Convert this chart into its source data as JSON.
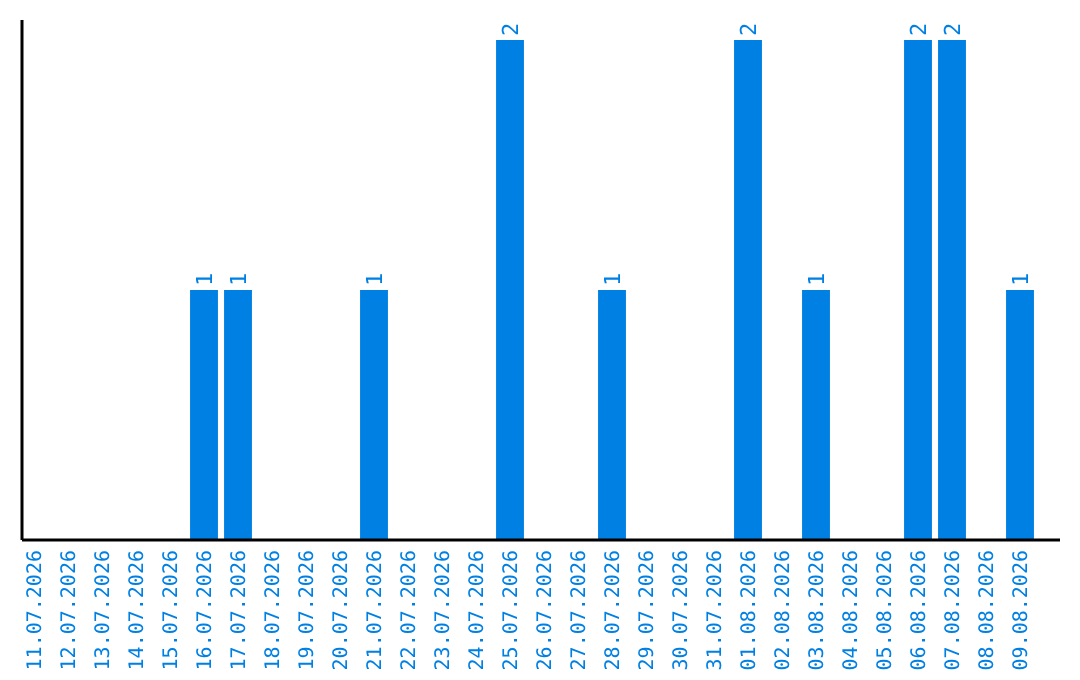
{
  "chart_data": {
    "type": "bar",
    "categories": [
      "11.07.2026",
      "12.07.2026",
      "13.07.2026",
      "14.07.2026",
      "15.07.2026",
      "16.07.2026",
      "17.07.2026",
      "18.07.2026",
      "19.07.2026",
      "20.07.2026",
      "21.07.2026",
      "22.07.2026",
      "23.07.2026",
      "24.07.2026",
      "25.07.2026",
      "26.07.2026",
      "27.07.2026",
      "28.07.2026",
      "29.07.2026",
      "30.07.2026",
      "31.07.2026",
      "01.08.2026",
      "02.08.2026",
      "03.08.2026",
      "04.08.2026",
      "05.08.2026",
      "06.08.2026",
      "07.08.2026",
      "08.08.2026",
      "09.08.2026"
    ],
    "values": [
      0,
      0,
      0,
      0,
      0,
      1,
      1,
      0,
      0,
      0,
      1,
      0,
      0,
      0,
      2,
      0,
      0,
      1,
      0,
      0,
      0,
      2,
      0,
      1,
      0,
      0,
      2,
      2,
      0,
      1
    ],
    "value_labels": [
      null,
      null,
      null,
      null,
      null,
      "1",
      "1",
      null,
      null,
      null,
      "1",
      null,
      null,
      null,
      "2",
      null,
      null,
      "1",
      null,
      null,
      null,
      "2",
      null,
      "1",
      null,
      null,
      "2",
      "2",
      null,
      "1"
    ],
    "color": "#0080e3",
    "tick_labels": "x"
  }
}
